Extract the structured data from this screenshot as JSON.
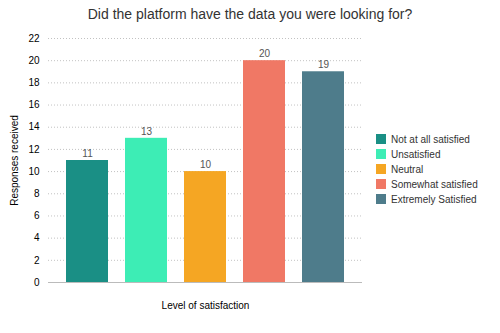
{
  "chart_data": {
    "type": "bar",
    "title": "Did the platform have the data you were looking for?",
    "categories": [
      "Not at all satisfied",
      "Unsatisfied",
      "Neutral",
      "Somewhat satisfied",
      "Extremely Satisfied"
    ],
    "values": [
      11,
      13,
      10,
      20,
      19
    ],
    "colors": [
      "#1A8F85",
      "#3DEDB5",
      "#F5A623",
      "#F07865",
      "#4E7C8B"
    ],
    "xlabel": "Level of satisfaction",
    "ylabel": "Responses received",
    "ylim": [
      0,
      22
    ],
    "yticks": [
      0,
      2,
      4,
      6,
      8,
      10,
      12,
      14,
      16,
      18,
      20,
      22
    ],
    "grid": true,
    "legend": "right",
    "data_labels": true,
    "tick_labels": "y"
  }
}
